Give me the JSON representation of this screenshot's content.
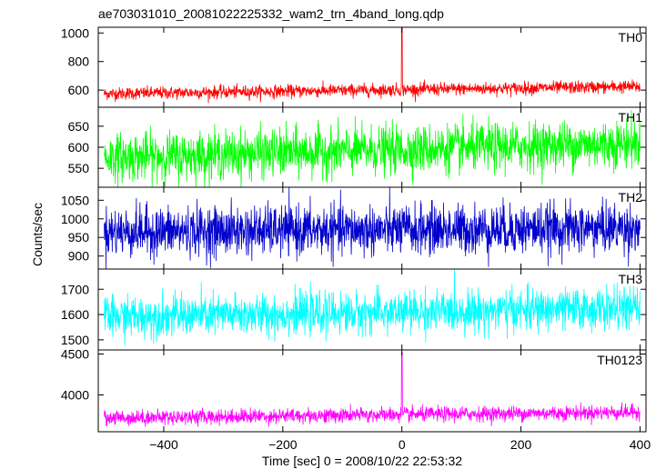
{
  "chart_data": {
    "type": "line",
    "title": "ae703031010_20081022225332_wam2_trn_4band_long.qdp",
    "xlabel": "Time [sec] 0 = 2008/10/22 22:53:32",
    "ylabel": "Counts/sec",
    "xlim": [
      -510,
      410
    ],
    "xticks": [
      -400,
      -200,
      0,
      200,
      400
    ],
    "xtick_labels": [
      "−400",
      "−200",
      "0",
      "200",
      "400"
    ],
    "grid": false,
    "panels": [
      {
        "name": "TH0",
        "color": "#ff0000",
        "ylim": [
          480,
          1040
        ],
        "yticks": [
          600,
          800,
          1000
        ],
        "baseline": [
          575,
          625
        ],
        "noise": 22,
        "spike": 1040
      },
      {
        "name": "TH1",
        "color": "#00ff00",
        "ylim": [
          505,
          695
        ],
        "yticks": [
          550,
          600,
          650
        ],
        "baseline": [
          575,
          610
        ],
        "noise": 28,
        "spike": 0
      },
      {
        "name": "TH2",
        "color": "#0000cc",
        "ylim": [
          865,
          1085
        ],
        "yticks": [
          900,
          950,
          1000,
          1050
        ],
        "baseline": [
          965,
          975
        ],
        "noise": 33,
        "spike": 0
      },
      {
        "name": "TH3",
        "color": "#00ffff",
        "ylim": [
          1460,
          1780
        ],
        "yticks": [
          1500,
          1600,
          1700
        ],
        "baseline": [
          1590,
          1625
        ],
        "noise": 40,
        "spike": 0
      },
      {
        "name": "TH0123",
        "color": "#ff00ff",
        "ylim": [
          3550,
          4550
        ],
        "yticks": [
          4000,
          4500
        ],
        "baseline": [
          3720,
          3790
        ],
        "noise": 45,
        "spike": 4520
      }
    ]
  }
}
